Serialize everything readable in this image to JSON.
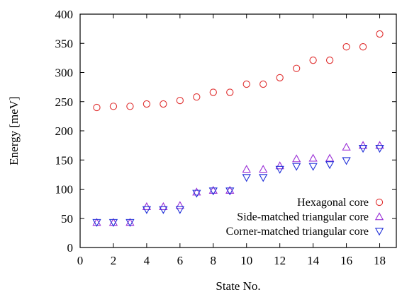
{
  "chart_data": {
    "type": "scatter",
    "title": "",
    "xlabel": "State No.",
    "ylabel": "Energy [meV]",
    "xlim": [
      0,
      19
    ],
    "ylim": [
      0,
      400
    ],
    "xticks": [
      0,
      2,
      4,
      6,
      8,
      10,
      12,
      14,
      16,
      18
    ],
    "yticks": [
      0,
      50,
      100,
      150,
      200,
      250,
      300,
      350,
      400
    ],
    "grid": false,
    "legend_position": "bottom-right",
    "x": [
      1,
      2,
      3,
      4,
      5,
      6,
      7,
      8,
      9,
      10,
      11,
      12,
      13,
      14,
      15,
      16,
      17,
      18
    ],
    "series": [
      {
        "name": "Hexagonal core",
        "marker": "circle",
        "color": "#e03030",
        "values": [
          240,
          242,
          242,
          246,
          246,
          252,
          258,
          266,
          266,
          280,
          280,
          291,
          307,
          321,
          321,
          344,
          344,
          366
        ]
      },
      {
        "name": "Side-matched triangular core",
        "marker": "triangle-up",
        "color": "#9a2fd6",
        "values": [
          43,
          43,
          43,
          70,
          70,
          72,
          95,
          98,
          98,
          134,
          134,
          140,
          152,
          153,
          153,
          172,
          175,
          175
        ]
      },
      {
        "name": "Corner-matched triangular core",
        "marker": "triangle-down",
        "color": "#2030d8",
        "values": [
          43,
          43,
          43,
          65,
          65,
          65,
          93,
          97,
          97,
          120,
          120,
          134,
          139,
          139,
          142,
          149,
          170,
          170
        ]
      }
    ]
  }
}
